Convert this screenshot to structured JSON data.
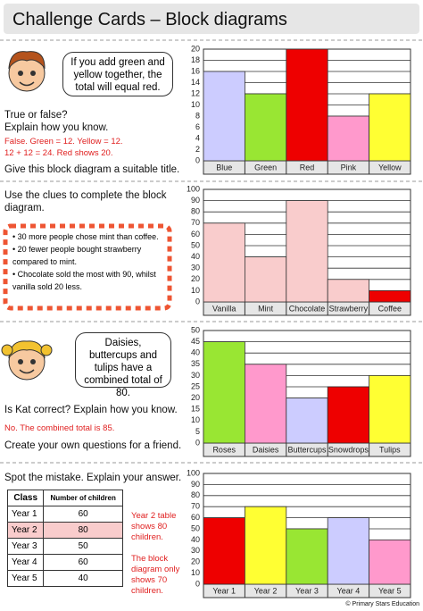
{
  "title": "Challenge Cards – Block diagrams",
  "section1": {
    "bubble": "If you add green and yellow together, the total will equal red.",
    "question1": "True or false?",
    "question2": "Explain how you know.",
    "answer1": "False. Green = 12. Yellow = 12.",
    "answer2": "12 + 12 = 24. Red shows 20.",
    "task": "Give this block diagram a suitable title."
  },
  "section2": {
    "instruction": "Use the clues to complete the block diagram.",
    "clues": [
      "30 more people chose mint than coffee.",
      "20 fewer people bought strawberry compared to mint.",
      "Chocolate sold the most with 90, whilst vanilla sold 20 less."
    ]
  },
  "section3": {
    "bubble": "Daisies, buttercups and tulips have a combined total of 80.",
    "question": "Is Kat correct? Explain how you know.",
    "answer": "No. The combined total is 85.",
    "task": "Create your own questions for a friend."
  },
  "section4": {
    "instruction": "Spot the mistake. Explain your answer.",
    "table": {
      "header": [
        "Class",
        "Number of children"
      ],
      "rows": [
        [
          "Year 1",
          "60"
        ],
        [
          "Year 2",
          "80"
        ],
        [
          "Year 3",
          "50"
        ],
        [
          "Year 4",
          "60"
        ],
        [
          "Year 5",
          "40"
        ]
      ],
      "highlight_row": 1
    },
    "answer1": "Year 2 table shows 80 children.",
    "answer2": "The block diagram only shows 70 children."
  },
  "footer": "© Primary Stars Education",
  "chart_data": [
    {
      "type": "bar",
      "categories": [
        "Blue",
        "Green",
        "Red",
        "Pink",
        "Yellow"
      ],
      "values": [
        16,
        12,
        20,
        8,
        12
      ],
      "colors": [
        "#ccccff",
        "#99e633",
        "#ee0000",
        "#ff99cc",
        "#ffff33"
      ],
      "ylim": [
        0,
        20
      ],
      "yticks": [
        0,
        2,
        4,
        6,
        8,
        10,
        12,
        14,
        16,
        18,
        20
      ],
      "grid": true
    },
    {
      "type": "bar",
      "categories": [
        "Vanilla",
        "Mint",
        "Chocolate",
        "Strawberry",
        "Coffee"
      ],
      "values": [
        70,
        40,
        90,
        20,
        10
      ],
      "colors": [
        "#f9cccc",
        "#f9cccc",
        "#f9cccc",
        "#f9cccc",
        "#ee0000"
      ],
      "ylim": [
        0,
        100
      ],
      "yticks": [
        0,
        10,
        20,
        30,
        40,
        50,
        60,
        70,
        80,
        90,
        100
      ],
      "grid": true
    },
    {
      "type": "bar",
      "categories": [
        "Roses",
        "Daisies",
        "Buttercups",
        "Snowdrops",
        "Tulips"
      ],
      "values": [
        45,
        35,
        20,
        25,
        30
      ],
      "colors": [
        "#99e633",
        "#ff99cc",
        "#ccccff",
        "#ee0000",
        "#ffff33"
      ],
      "ylim": [
        0,
        50
      ],
      "yticks": [
        0,
        5,
        10,
        15,
        20,
        25,
        30,
        35,
        40,
        45,
        50
      ],
      "grid": true
    },
    {
      "type": "bar",
      "categories": [
        "Year 1",
        "Year 2",
        "Year 3",
        "Year 4",
        "Year 5"
      ],
      "values": [
        60,
        70,
        50,
        60,
        40
      ],
      "colors": [
        "#ee0000",
        "#ffff33",
        "#99e633",
        "#ccccff",
        "#ff99cc"
      ],
      "ylim": [
        0,
        100
      ],
      "yticks": [
        0,
        10,
        20,
        30,
        40,
        50,
        60,
        70,
        80,
        90,
        100
      ],
      "grid": true
    }
  ]
}
